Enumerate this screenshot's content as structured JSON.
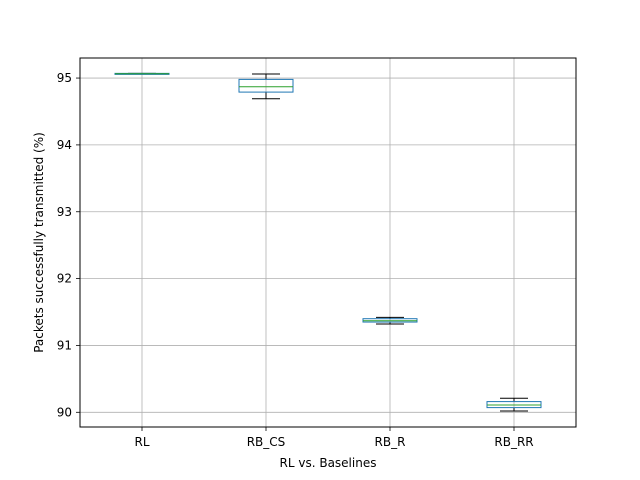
{
  "chart_data": {
    "type": "box",
    "title": "",
    "xlabel": "RL vs. Baselines",
    "ylabel": "Packets successfully  transmitted (%)",
    "categories": [
      "RL",
      "RB_CS",
      "RB_R",
      "RB_RR"
    ],
    "boxes": [
      {
        "name": "RL",
        "whisker_low": 95.06,
        "q1": 95.06,
        "median": 95.065,
        "q3": 95.07,
        "whisker_high": 95.07
      },
      {
        "name": "RB_CS",
        "whisker_low": 94.69,
        "q1": 94.79,
        "median": 94.87,
        "q3": 94.98,
        "whisker_high": 95.06
      },
      {
        "name": "RB_R",
        "whisker_low": 91.32,
        "q1": 91.35,
        "median": 91.37,
        "q3": 91.4,
        "whisker_high": 91.42
      },
      {
        "name": "RB_RR",
        "whisker_low": 90.02,
        "q1": 90.07,
        "median": 90.11,
        "q3": 90.16,
        "whisker_high": 90.21
      }
    ],
    "yticks": [
      90,
      91,
      92,
      93,
      94,
      95
    ],
    "ylim": [
      89.78,
      95.3
    ],
    "grid": true,
    "colors": {
      "box": "#1f77b4",
      "median": "#2ca02c",
      "whisker": "#000000",
      "grid": "#b0b0b0"
    }
  }
}
